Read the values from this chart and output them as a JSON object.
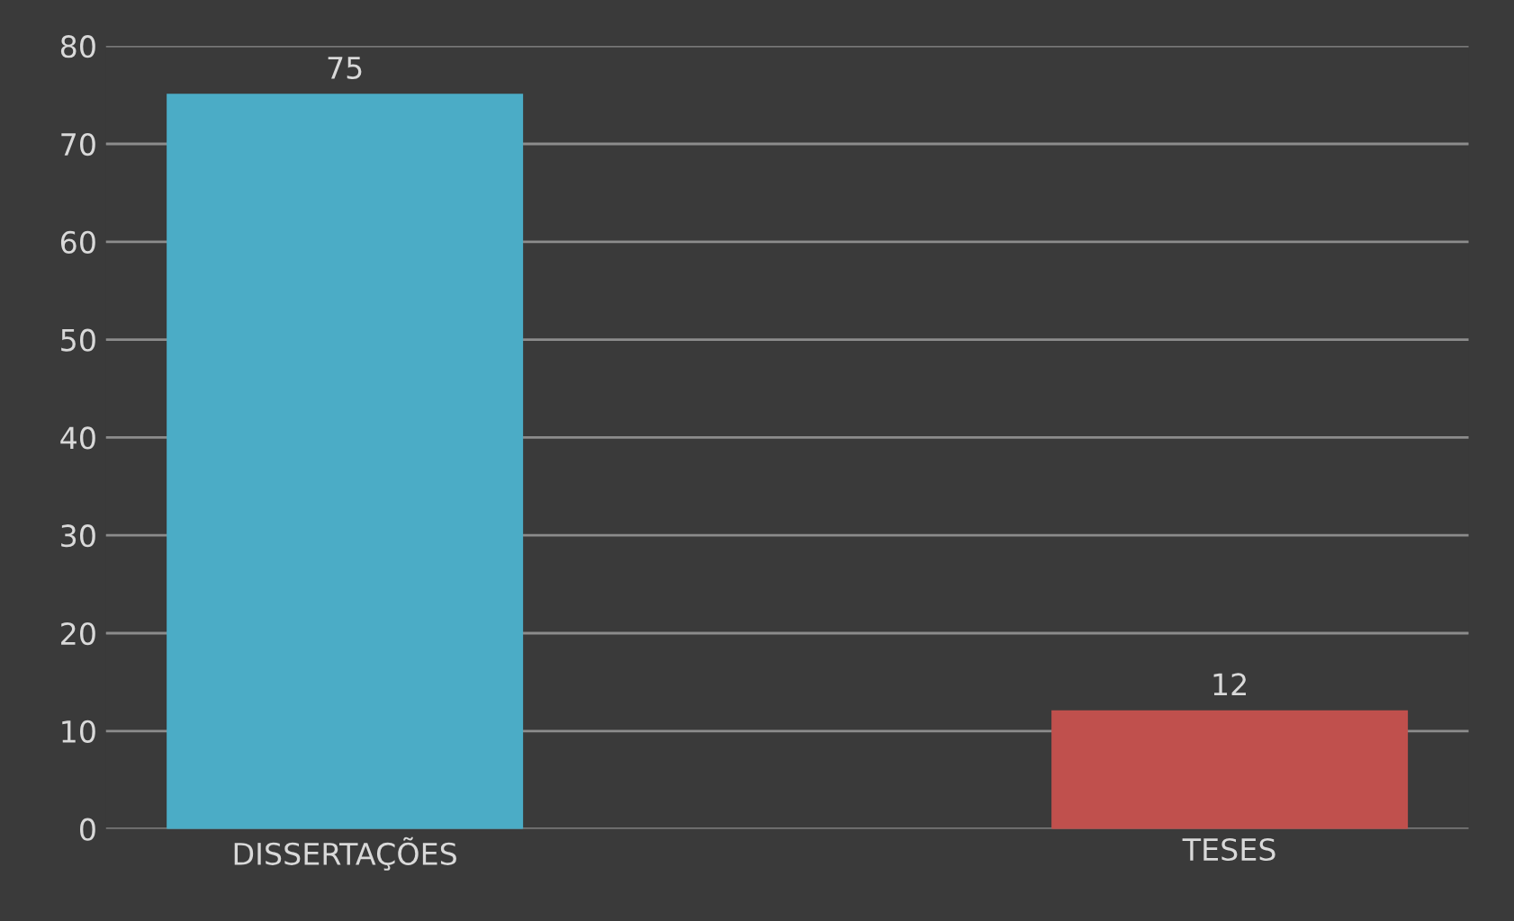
{
  "chart_data": {
    "type": "bar",
    "categories": [
      "DISSERTAÇÕES",
      "TESES"
    ],
    "values": [
      75,
      12
    ],
    "colors": [
      "#4bacc6",
      "#c0504d"
    ],
    "ylim": [
      0,
      80
    ],
    "yticks": [
      0,
      10,
      20,
      30,
      40,
      50,
      60,
      70,
      80
    ],
    "grid": "y",
    "data_labels": true
  }
}
